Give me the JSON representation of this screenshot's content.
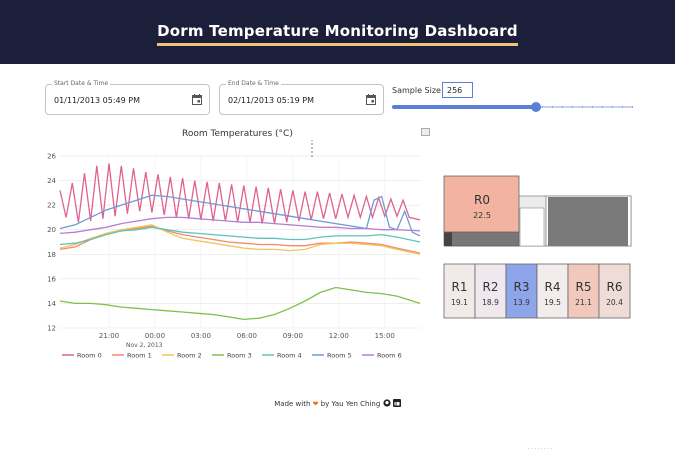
{
  "header": {
    "title": "Dorm Temperature Monitoring Dashboard"
  },
  "controls": {
    "start": {
      "label": "Start Date & Time",
      "value": "01/11/2013 05:49 PM"
    },
    "end": {
      "label": "End Date & Time",
      "value": "02/11/2013 05:19 PM"
    },
    "sample_size": {
      "label": "Sample Size",
      "value": "256",
      "fraction": 0.6
    }
  },
  "chart_data": {
    "type": "line",
    "title": "Room Temperatures (°C)",
    "xlabel": "",
    "ylabel": "",
    "ylim": [
      12,
      26
    ],
    "y_ticks": [
      "12",
      "14",
      "16",
      "18",
      "20",
      "22",
      "24",
      "26"
    ],
    "x_ticks": [
      {
        "h": 3.2,
        "label": "21:00"
      },
      {
        "h": 6.2,
        "label": "00:00"
      },
      {
        "h": 9.2,
        "label": "03:00"
      },
      {
        "h": 12.2,
        "label": "06:00"
      },
      {
        "h": 15.2,
        "label": "09:00"
      },
      {
        "h": 18.2,
        "label": "12:00"
      },
      {
        "h": 21.2,
        "label": "15:00"
      }
    ],
    "x_sublabel": {
      "h": 5.5,
      "label": "Nov 2, 2013"
    },
    "xlim_hours": [
      0,
      23.5
    ],
    "series": [
      {
        "name": "Room 0",
        "color": "#e0628f",
        "values": [
          [
            0,
            23.2
          ],
          [
            0.4,
            21.0
          ],
          [
            0.8,
            23.8
          ],
          [
            1.2,
            20.6
          ],
          [
            1.6,
            24.6
          ],
          [
            2,
            20.7
          ],
          [
            2.4,
            25.2
          ],
          [
            2.8,
            20.9
          ],
          [
            3.2,
            25.4
          ],
          [
            3.6,
            21.1
          ],
          [
            4,
            25.2
          ],
          [
            4.4,
            21.3
          ],
          [
            4.8,
            25.0
          ],
          [
            5.2,
            21.5
          ],
          [
            5.6,
            24.7
          ],
          [
            6,
            21.4
          ],
          [
            6.4,
            24.5
          ],
          [
            6.8,
            21.2
          ],
          [
            7.2,
            24.3
          ],
          [
            7.6,
            21.0
          ],
          [
            8,
            24.2
          ],
          [
            8.4,
            20.9
          ],
          [
            8.8,
            24.0
          ],
          [
            9.2,
            20.8
          ],
          [
            9.6,
            23.9
          ],
          [
            10,
            20.7
          ],
          [
            10.4,
            23.8
          ],
          [
            10.8,
            20.7
          ],
          [
            11.2,
            23.7
          ],
          [
            11.6,
            20.6
          ],
          [
            12,
            23.6
          ],
          [
            12.4,
            20.6
          ],
          [
            12.8,
            23.5
          ],
          [
            13.2,
            20.5
          ],
          [
            13.6,
            23.4
          ],
          [
            14,
            20.5
          ],
          [
            14.4,
            23.3
          ],
          [
            14.8,
            20.6
          ],
          [
            15.2,
            23.2
          ],
          [
            15.6,
            20.7
          ],
          [
            16,
            23.1
          ],
          [
            16.4,
            20.8
          ],
          [
            16.8,
            23.1
          ],
          [
            17.2,
            20.9
          ],
          [
            17.6,
            23.0
          ],
          [
            18,
            20.9
          ],
          [
            18.4,
            22.9
          ],
          [
            18.8,
            21.0
          ],
          [
            19.2,
            22.8
          ],
          [
            19.6,
            21.0
          ],
          [
            20,
            22.7
          ],
          [
            20.4,
            21.0
          ],
          [
            20.8,
            22.6
          ],
          [
            21.2,
            21.1
          ],
          [
            21.6,
            22.5
          ],
          [
            22,
            21.1
          ],
          [
            22.4,
            22.4
          ],
          [
            22.8,
            21.0
          ],
          [
            23.5,
            20.8
          ]
        ]
      },
      {
        "name": "Room 1",
        "color": "#f0896f",
        "values": [
          [
            0,
            18.4
          ],
          [
            1,
            18.6
          ],
          [
            2,
            19.2
          ],
          [
            3,
            19.6
          ],
          [
            4,
            19.9
          ],
          [
            5,
            20.1
          ],
          [
            6,
            20.3
          ],
          [
            7,
            19.9
          ],
          [
            8,
            19.6
          ],
          [
            9,
            19.4
          ],
          [
            10,
            19.2
          ],
          [
            11,
            19.0
          ],
          [
            12,
            18.9
          ],
          [
            13,
            18.8
          ],
          [
            14,
            18.8
          ],
          [
            15,
            18.7
          ],
          [
            16,
            18.7
          ],
          [
            17,
            18.9
          ],
          [
            18,
            18.9
          ],
          [
            19,
            19.0
          ],
          [
            20,
            18.9
          ],
          [
            21,
            18.8
          ],
          [
            22,
            18.5
          ],
          [
            23.5,
            18.1
          ]
        ]
      },
      {
        "name": "Room 2",
        "color": "#f2c45a",
        "values": [
          [
            0,
            18.5
          ],
          [
            1,
            18.8
          ],
          [
            2,
            19.3
          ],
          [
            3,
            19.7
          ],
          [
            4,
            20.0
          ],
          [
            5,
            20.2
          ],
          [
            6,
            20.4
          ],
          [
            7,
            19.8
          ],
          [
            8,
            19.3
          ],
          [
            9,
            19.1
          ],
          [
            10,
            18.9
          ],
          [
            11,
            18.7
          ],
          [
            12,
            18.5
          ],
          [
            13,
            18.4
          ],
          [
            14,
            18.4
          ],
          [
            15,
            18.3
          ],
          [
            16,
            18.4
          ],
          [
            17,
            18.8
          ],
          [
            18,
            18.9
          ],
          [
            19,
            18.9
          ],
          [
            20,
            18.8
          ],
          [
            21,
            18.7
          ],
          [
            22,
            18.4
          ],
          [
            23.5,
            18.0
          ]
        ]
      },
      {
        "name": "Room 3",
        "color": "#7cc24a",
        "values": [
          [
            0,
            14.2
          ],
          [
            1,
            14.0
          ],
          [
            2,
            14.0
          ],
          [
            3,
            13.9
          ],
          [
            4,
            13.7
          ],
          [
            5,
            13.6
          ],
          [
            6,
            13.5
          ],
          [
            7,
            13.4
          ],
          [
            8,
            13.3
          ],
          [
            9,
            13.2
          ],
          [
            10,
            13.1
          ],
          [
            11,
            12.9
          ],
          [
            12,
            12.7
          ],
          [
            13,
            12.8
          ],
          [
            14,
            13.1
          ],
          [
            15,
            13.6
          ],
          [
            16,
            14.2
          ],
          [
            17,
            14.9
          ],
          [
            18,
            15.3
          ],
          [
            19,
            15.1
          ],
          [
            20,
            14.9
          ],
          [
            21,
            14.8
          ],
          [
            22,
            14.6
          ],
          [
            23.5,
            14.0
          ]
        ]
      },
      {
        "name": "Room 4",
        "color": "#5fc2b8",
        "values": [
          [
            0,
            18.8
          ],
          [
            1,
            18.9
          ],
          [
            2,
            19.2
          ],
          [
            3,
            19.6
          ],
          [
            4,
            19.9
          ],
          [
            5,
            20.0
          ],
          [
            6,
            20.2
          ],
          [
            7,
            20.0
          ],
          [
            8,
            19.8
          ],
          [
            9,
            19.7
          ],
          [
            10,
            19.6
          ],
          [
            11,
            19.5
          ],
          [
            12,
            19.4
          ],
          [
            13,
            19.3
          ],
          [
            14,
            19.3
          ],
          [
            15,
            19.2
          ],
          [
            16,
            19.2
          ],
          [
            17,
            19.4
          ],
          [
            18,
            19.5
          ],
          [
            19,
            19.5
          ],
          [
            20,
            19.5
          ],
          [
            21,
            19.6
          ],
          [
            22,
            19.4
          ],
          [
            23.5,
            19.0
          ]
        ]
      },
      {
        "name": "Room 5",
        "color": "#6d9bd3",
        "values": [
          [
            0,
            20.1
          ],
          [
            1,
            20.4
          ],
          [
            2,
            21.0
          ],
          [
            3,
            21.6
          ],
          [
            4,
            22.0
          ],
          [
            5,
            22.4
          ],
          [
            6,
            22.8
          ],
          [
            7,
            22.7
          ],
          [
            8,
            22.5
          ],
          [
            9,
            22.3
          ],
          [
            10,
            22.1
          ],
          [
            11,
            21.9
          ],
          [
            12,
            21.7
          ],
          [
            13,
            21.5
          ],
          [
            14,
            21.3
          ],
          [
            15,
            21.1
          ],
          [
            16,
            20.9
          ],
          [
            17,
            20.7
          ],
          [
            18,
            20.5
          ],
          [
            19,
            20.3
          ],
          [
            20,
            20.1
          ],
          [
            20.5,
            22.4
          ],
          [
            21,
            22.7
          ],
          [
            21.5,
            20.2
          ],
          [
            22,
            20.0
          ],
          [
            22.5,
            21.5
          ],
          [
            23,
            19.8
          ],
          [
            23.5,
            19.5
          ]
        ]
      },
      {
        "name": "Room 6",
        "color": "#b77fd4",
        "values": [
          [
            0,
            19.7
          ],
          [
            1,
            19.8
          ],
          [
            2,
            20.0
          ],
          [
            3,
            20.2
          ],
          [
            4,
            20.5
          ],
          [
            5,
            20.7
          ],
          [
            6,
            20.9
          ],
          [
            7,
            21.0
          ],
          [
            8,
            21.0
          ],
          [
            9,
            20.9
          ],
          [
            10,
            20.8
          ],
          [
            11,
            20.7
          ],
          [
            12,
            20.6
          ],
          [
            13,
            20.6
          ],
          [
            14,
            20.5
          ],
          [
            15,
            20.4
          ],
          [
            16,
            20.3
          ],
          [
            17,
            20.2
          ],
          [
            18,
            20.2
          ],
          [
            19,
            20.1
          ],
          [
            20,
            20.1
          ],
          [
            21,
            20.0
          ],
          [
            22,
            20.0
          ],
          [
            23.5,
            19.9
          ]
        ]
      }
    ]
  },
  "floorplan": {
    "rooms": [
      {
        "id": "R0",
        "temp": "22.5",
        "color": "#f2b4a0"
      },
      {
        "id": "R1",
        "temp": "19.1",
        "color": "#f2e9e9"
      },
      {
        "id": "R2",
        "temp": "18.9",
        "color": "#efe8ec"
      },
      {
        "id": "R3",
        "temp": "13.9",
        "color": "#8fa5ea"
      },
      {
        "id": "R4",
        "temp": "19.5",
        "color": "#f2ecec"
      },
      {
        "id": "R5",
        "temp": "21.1",
        "color": "#f1c9bc"
      },
      {
        "id": "R6",
        "temp": "20.4",
        "color": "#f0dcd6"
      }
    ]
  },
  "footer": {
    "made_with": "Made with",
    "by": "by Yau Yen Ching"
  },
  "icons": {
    "calendar": "calendar-icon",
    "heart": "heart-icon",
    "github": "github-icon",
    "linkedin": "linkedin-icon"
  }
}
